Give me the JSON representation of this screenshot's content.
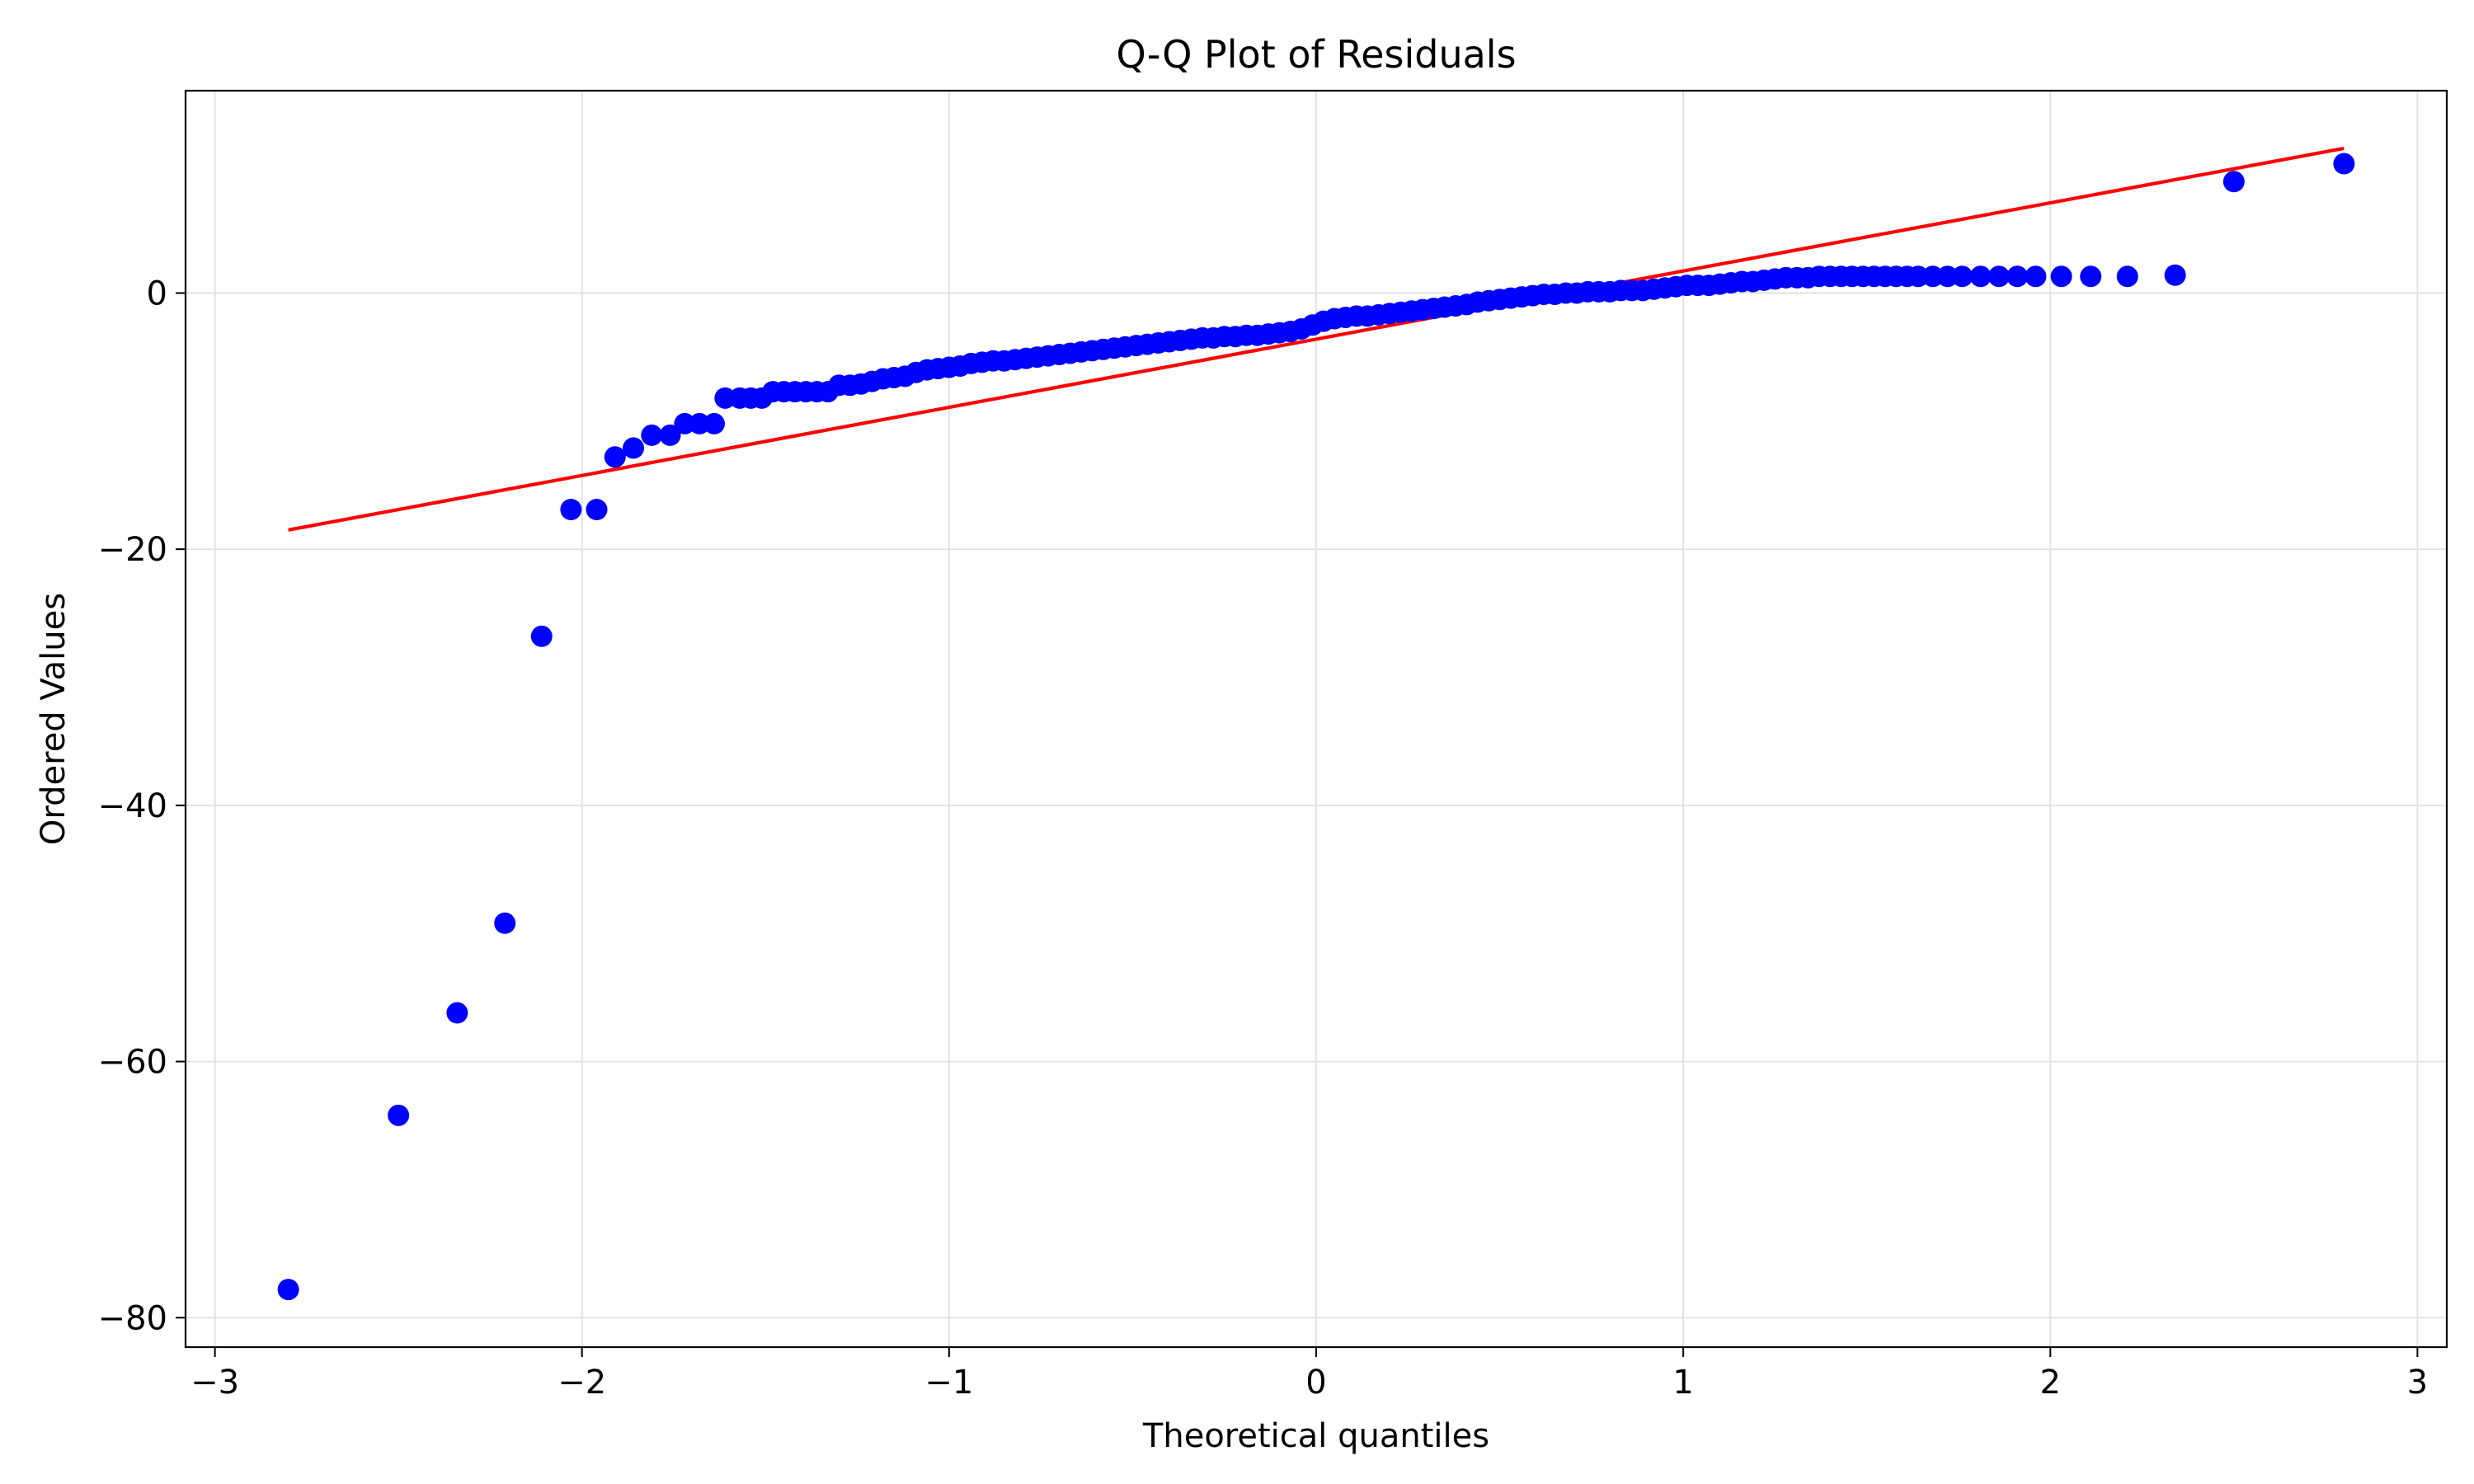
{
  "chart_data": {
    "type": "scatter",
    "title": "Q-Q Plot of Residuals",
    "xlabel": "Theoretical quantiles",
    "ylabel": "Ordered Values",
    "xlim": [
      -3.08,
      3.08
    ],
    "ylim": [
      -82.3,
      15.8
    ],
    "xticks": [
      -3,
      -2,
      -1,
      0,
      1,
      2,
      3
    ],
    "xtick_labels": [
      "−3",
      "−2",
      "−1",
      "0",
      "1",
      "2",
      "3"
    ],
    "yticks": [
      -80,
      -60,
      -40,
      -20,
      0
    ],
    "ytick_labels": [
      "−80",
      "−60",
      "−40",
      "−20",
      "0"
    ],
    "grid": true,
    "colors": {
      "points": "#0000ff",
      "fit_line": "#ff0000",
      "grid": "#e0e0e0"
    },
    "series": [
      {
        "kind": "points",
        "points": [
          [
            -2.8,
            -77.8
          ],
          [
            -2.5,
            -64.2
          ],
          [
            -2.34,
            -56.2
          ],
          [
            -2.21,
            -49.2
          ],
          [
            -2.11,
            -26.8
          ],
          [
            -2.03,
            -16.9
          ],
          [
            -1.96,
            -16.9
          ],
          [
            -1.91,
            -12.8
          ],
          [
            -1.86,
            -12.1
          ],
          [
            -1.81,
            -11.1
          ],
          [
            -1.76,
            -11.1
          ],
          [
            -1.72,
            -10.2
          ],
          [
            -1.68,
            -10.2
          ],
          [
            -1.64,
            -10.2
          ],
          [
            -1.61,
            -8.2
          ],
          [
            -1.57,
            -8.2
          ],
          [
            -1.54,
            -8.2
          ],
          [
            -1.51,
            -8.2
          ],
          [
            -1.48,
            -7.7
          ],
          [
            -1.45,
            -7.7
          ],
          [
            -1.42,
            -7.7
          ],
          [
            -1.39,
            -7.7
          ],
          [
            -1.36,
            -7.7
          ],
          [
            -1.33,
            -7.7
          ],
          [
            -1.3,
            -7.2
          ],
          [
            -1.27,
            -7.2
          ],
          [
            -1.24,
            -7.1
          ],
          [
            -1.21,
            -6.9
          ],
          [
            -1.18,
            -6.7
          ],
          [
            -1.15,
            -6.6
          ],
          [
            -1.12,
            -6.5
          ],
          [
            -1.09,
            -6.2
          ],
          [
            -1.06,
            -6.0
          ],
          [
            -1.03,
            -5.9
          ],
          [
            -1.0,
            -5.8
          ],
          [
            -0.97,
            -5.7
          ],
          [
            -0.94,
            -5.5
          ],
          [
            -0.91,
            -5.4
          ],
          [
            -0.88,
            -5.3
          ],
          [
            -0.85,
            -5.3
          ],
          [
            -0.82,
            -5.2
          ],
          [
            -0.79,
            -5.1
          ],
          [
            -0.76,
            -5.0
          ],
          [
            -0.73,
            -4.9
          ],
          [
            -0.7,
            -4.8
          ],
          [
            -0.67,
            -4.7
          ],
          [
            -0.64,
            -4.6
          ],
          [
            -0.61,
            -4.5
          ],
          [
            -0.58,
            -4.4
          ],
          [
            -0.55,
            -4.3
          ],
          [
            -0.52,
            -4.2
          ],
          [
            -0.49,
            -4.1
          ],
          [
            -0.46,
            -4.0
          ],
          [
            -0.43,
            -3.9
          ],
          [
            -0.4,
            -3.8
          ],
          [
            -0.37,
            -3.7
          ],
          [
            -0.34,
            -3.6
          ],
          [
            -0.31,
            -3.5
          ],
          [
            -0.28,
            -3.5
          ],
          [
            -0.25,
            -3.4
          ],
          [
            -0.22,
            -3.4
          ],
          [
            -0.19,
            -3.3
          ],
          [
            -0.16,
            -3.3
          ],
          [
            -0.13,
            -3.2
          ],
          [
            -0.1,
            -3.1
          ],
          [
            -0.07,
            -3.0
          ],
          [
            -0.04,
            -2.8
          ],
          [
            -0.01,
            -2.5
          ],
          [
            0.02,
            -2.2
          ],
          [
            0.05,
            -2.0
          ],
          [
            0.08,
            -1.9
          ],
          [
            0.11,
            -1.8
          ],
          [
            0.14,
            -1.8
          ],
          [
            0.17,
            -1.7
          ],
          [
            0.2,
            -1.6
          ],
          [
            0.23,
            -1.5
          ],
          [
            0.26,
            -1.4
          ],
          [
            0.29,
            -1.3
          ],
          [
            0.32,
            -1.2
          ],
          [
            0.35,
            -1.1
          ],
          [
            0.38,
            -1.0
          ],
          [
            0.41,
            -0.9
          ],
          [
            0.44,
            -0.7
          ],
          [
            0.47,
            -0.6
          ],
          [
            0.5,
            -0.5
          ],
          [
            0.53,
            -0.4
          ],
          [
            0.56,
            -0.3
          ],
          [
            0.59,
            -0.2
          ],
          [
            0.62,
            -0.1
          ],
          [
            0.65,
            -0.1
          ],
          [
            0.68,
            0.0
          ],
          [
            0.71,
            0.0
          ],
          [
            0.74,
            0.1
          ],
          [
            0.77,
            0.1
          ],
          [
            0.8,
            0.1
          ],
          [
            0.83,
            0.2
          ],
          [
            0.86,
            0.2
          ],
          [
            0.89,
            0.2
          ],
          [
            0.92,
            0.3
          ],
          [
            0.95,
            0.4
          ],
          [
            0.98,
            0.5
          ],
          [
            1.01,
            0.6
          ],
          [
            1.04,
            0.6
          ],
          [
            1.07,
            0.6
          ],
          [
            1.1,
            0.7
          ],
          [
            1.13,
            0.8
          ],
          [
            1.16,
            0.9
          ],
          [
            1.19,
            0.9
          ],
          [
            1.22,
            1.0
          ],
          [
            1.25,
            1.1
          ],
          [
            1.28,
            1.2
          ],
          [
            1.31,
            1.2
          ],
          [
            1.34,
            1.2
          ],
          [
            1.37,
            1.3
          ],
          [
            1.4,
            1.3
          ],
          [
            1.43,
            1.3
          ],
          [
            1.46,
            1.3
          ],
          [
            1.49,
            1.3
          ],
          [
            1.52,
            1.3
          ],
          [
            1.55,
            1.3
          ],
          [
            1.58,
            1.3
          ],
          [
            1.61,
            1.3
          ],
          [
            1.64,
            1.3
          ],
          [
            1.68,
            1.3
          ],
          [
            1.72,
            1.3
          ],
          [
            1.76,
            1.3
          ],
          [
            1.81,
            1.3
          ],
          [
            1.86,
            1.3
          ],
          [
            1.91,
            1.3
          ],
          [
            1.96,
            1.3
          ],
          [
            2.03,
            1.3
          ],
          [
            2.11,
            1.3
          ],
          [
            2.21,
            1.3
          ],
          [
            2.34,
            1.4
          ],
          [
            2.5,
            8.7
          ],
          [
            2.8,
            10.1
          ]
        ]
      },
      {
        "kind": "line",
        "points": [
          [
            -2.8,
            -18.5
          ],
          [
            2.8,
            11.3
          ]
        ]
      }
    ]
  }
}
